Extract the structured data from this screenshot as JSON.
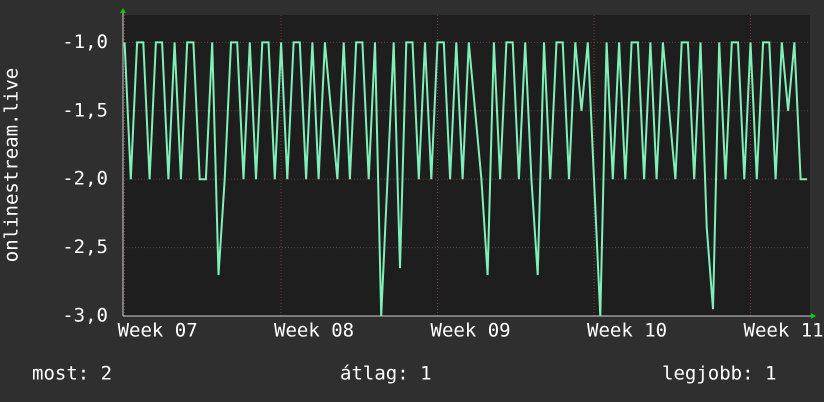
{
  "chart_data": {
    "type": "line",
    "y_label": "onlinestream.live",
    "x": [
      7,
      7.04,
      7.08,
      7.12,
      7.16,
      7.2,
      7.24,
      7.28,
      7.32,
      7.36,
      7.4,
      7.44,
      7.48,
      7.52,
      7.56,
      7.6,
      7.64,
      7.68,
      7.72,
      7.76,
      7.8,
      7.84,
      7.88,
      7.92,
      7.96,
      8,
      8.04,
      8.08,
      8.12,
      8.16,
      8.2,
      8.24,
      8.28,
      8.32,
      8.36,
      8.4,
      8.44,
      8.48,
      8.52,
      8.56,
      8.6,
      8.64,
      8.68,
      8.72,
      8.76,
      8.8,
      8.84,
      8.88,
      8.92,
      8.96,
      9,
      9.04,
      9.08,
      9.12,
      9.16,
      9.2,
      9.24,
      9.28,
      9.32,
      9.36,
      9.4,
      9.44,
      9.48,
      9.52,
      9.56,
      9.6,
      9.64,
      9.68,
      9.72,
      9.76,
      9.8,
      9.84,
      9.88,
      9.92,
      9.96,
      10,
      10.04,
      10.08,
      10.12,
      10.16,
      10.2,
      10.24,
      10.28,
      10.32,
      10.36,
      10.4,
      10.44,
      10.48,
      10.52,
      10.56,
      10.6,
      10.64,
      10.68,
      10.72,
      10.76,
      10.8,
      10.84,
      10.88,
      10.92,
      10.96,
      11,
      11.04,
      11.08,
      11.12,
      11.16,
      11.2,
      11.24,
      11.28,
      11.32,
      11.36
    ],
    "series": [
      {
        "color": "#80f0b8",
        "values": [
          -1,
          -2,
          -1,
          -1,
          -2,
          -1,
          -1,
          -2,
          -1,
          -2,
          -1,
          -1,
          -2,
          -2,
          -1,
          -2.7,
          -2,
          -1,
          -1,
          -2,
          -1,
          -2,
          -1,
          -1,
          -2,
          -1,
          -2,
          -1,
          -1,
          -2,
          -1,
          -2,
          -1,
          -1.5,
          -2,
          -1,
          -2,
          -1,
          -1,
          -2,
          -1,
          -3,
          -2,
          -1,
          -2.65,
          -1,
          -1,
          -2,
          -1,
          -2,
          -1,
          -1,
          -2,
          -1,
          -2,
          -1,
          -1.5,
          -2,
          -2.7,
          -1,
          -2,
          -1,
          -1,
          -2,
          -1,
          -2,
          -2.7,
          -1,
          -2,
          -1,
          -1,
          -2,
          -1,
          -1.5,
          -1,
          -2,
          -3,
          -1,
          -2,
          -1,
          -2,
          -1,
          -1,
          -2,
          -1,
          -2,
          -1,
          -1.5,
          -2,
          -1,
          -1,
          -2,
          -1,
          -2.35,
          -2.95,
          -1,
          -2,
          -1,
          -1,
          -2,
          -1,
          -2,
          -1,
          -1,
          -2,
          -1,
          -1.5,
          -1,
          -2,
          -2
        ]
      }
    ],
    "xlim": [
      6.99,
      11.38
    ],
    "xticks": [
      {
        "value": 7,
        "label": "Week 07"
      },
      {
        "value": 8,
        "label": "Week 08"
      },
      {
        "value": 9,
        "label": "Week 09"
      },
      {
        "value": 10,
        "label": "Week 10"
      },
      {
        "value": 11,
        "label": "Week 11"
      }
    ],
    "ylim": [
      -3,
      -0.8
    ],
    "yticks": [
      {
        "value": -3,
        "label": "-3,0"
      },
      {
        "value": -2.5,
        "label": "-2,5"
      },
      {
        "value": -2,
        "label": "-2,0"
      },
      {
        "value": -1.5,
        "label": "-1,5"
      },
      {
        "value": -1,
        "label": "-1,0"
      }
    ],
    "grid": true,
    "stats": [
      "most: 2",
      "átlag: 1",
      "legjobb: 1"
    ]
  }
}
